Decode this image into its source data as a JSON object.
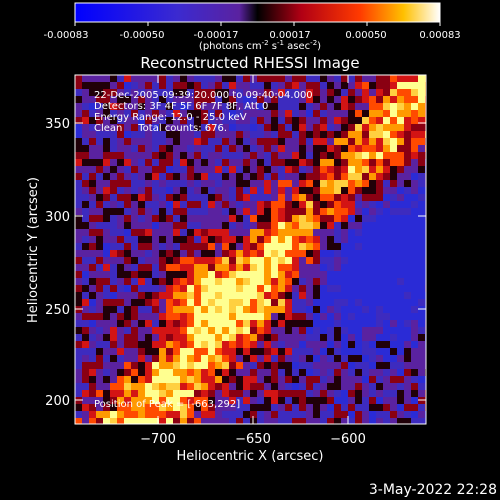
{
  "colorbar": {
    "ticks": [
      "-0.00083",
      "-0.00050",
      "-0.00017",
      "0.00017",
      "0.00050",
      "0.00083"
    ],
    "units_text": "(photons cm",
    "units_sup1": "-2",
    "units_mid1": " s",
    "units_sup2": "-1",
    "units_mid2": " asec",
    "units_sup3": "-2",
    "units_end": ")"
  },
  "title": "Reconstructed RHESSI Image",
  "info": {
    "line1": "22-Dec-2005 09:39:20.000 to 09:40:04.000",
    "line2": "Detectors: 3F 4F 5F 6F 7F 8F, Att 0",
    "line3": "Energy Range: 12.0 - 25.0 keV",
    "line4": "Clean     Total counts: 676.",
    "peak": "Position of Peak = [-663,292]"
  },
  "axes": {
    "xlabel": "Heliocentric X (arcsec)",
    "ylabel": "Heliocentric Y (arcsec)",
    "xticks": [
      "−700",
      "−650",
      "−600"
    ],
    "yticks": [
      "350",
      "300",
      "250",
      "200"
    ]
  },
  "timestamp": "3-May-2022 22:28",
  "colors": {
    "background": "#000000",
    "foreground": "#ffffff",
    "negative_low": "#2b1fcf",
    "neutral": "#5a23a0",
    "positive_mid": "#e8201a",
    "positive_high": "#ffff80"
  }
}
